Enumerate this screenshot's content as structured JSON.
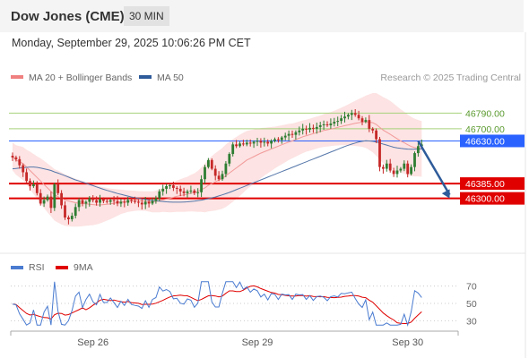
{
  "header": {
    "title": "Dow Jones (CME)",
    "interval": "30 MIN",
    "timestamp": "Monday, September 29, 2025 10:06:26 PM CET"
  },
  "legend": {
    "items": [
      {
        "label": "MA 20 + Bollinger Bands",
        "color": "#f08080"
      },
      {
        "label": "MA 50",
        "color": "#2e5b9a"
      }
    ],
    "credit": "Research © 2025 Trading Central"
  },
  "colors": {
    "up": "#2e7d32",
    "down": "#c62828",
    "band_fill": "#fde0e0",
    "ma20": "#f29a9a",
    "ma50": "#5577aa",
    "resistance": "#a6d27a",
    "support": "#e00000",
    "pivot": "#2962ff",
    "arrow": "#2e5b9a",
    "rsi": "#4a7bd0",
    "rsi_ma": "#e00000"
  },
  "chart_data": [
    {
      "type": "candlestick",
      "ylim": [
        46010,
        46905
      ],
      "x_ticks": [
        {
          "label": "Sep 26",
          "index": 23
        },
        {
          "label": "Sep 29",
          "index": 70
        },
        {
          "label": "Sep 30",
          "index": 113
        }
      ],
      "levels": [
        {
          "value": 46790,
          "label": "46790.00",
          "kind": "resistance"
        },
        {
          "value": 46700,
          "label": "46700.00",
          "kind": "resistance"
        },
        {
          "value": 46630,
          "label": "46630.00",
          "kind": "pivot"
        },
        {
          "value": 46385,
          "label": "46385.00",
          "kind": "support"
        },
        {
          "value": 46300,
          "label": "46300.00",
          "kind": "support"
        }
      ],
      "projection": {
        "from_index": 116,
        "from_value": 46630,
        "to_index": 125,
        "to_value": 46300
      },
      "closes": [
        46535,
        46525,
        46490,
        46450,
        46400,
        46370,
        46380,
        46330,
        46270,
        46290,
        46310,
        46245,
        46380,
        46330,
        46260,
        46190,
        46180,
        46200,
        46250,
        46290,
        46270,
        46280,
        46300,
        46290,
        46275,
        46295,
        46285,
        46280,
        46290,
        46285,
        46270,
        46280,
        46275,
        46290,
        46285,
        46280,
        46275,
        46265,
        46280,
        46270,
        46285,
        46300,
        46340,
        46355,
        46370,
        46375,
        46360,
        46355,
        46340,
        46330,
        46340,
        46345,
        46330,
        46335,
        46410,
        46480,
        46520,
        46470,
        46430,
        46410,
        46440,
        46500,
        46555,
        46610,
        46600,
        46615,
        46610,
        46620,
        46615,
        46625,
        46630,
        46620,
        46625,
        46615,
        46630,
        46640,
        46635,
        46650,
        46660,
        46670,
        46665,
        46680,
        46690,
        46700,
        46695,
        46705,
        46700,
        46710,
        46720,
        46725,
        46720,
        46730,
        46740,
        46745,
        46760,
        46770,
        46780,
        46790,
        46780,
        46760,
        46740,
        46750,
        46700,
        46690,
        46640,
        46480,
        46470,
        46500,
        46460,
        46440,
        46460,
        46470,
        46500,
        46440,
        46480,
        46560,
        46600,
        46610
      ],
      "ma20": [
        46540,
        46520,
        46510,
        46500,
        46480,
        46460,
        46440,
        46420,
        46400,
        46380,
        46360,
        46340,
        46320,
        46310,
        46300,
        46290,
        46285,
        46280,
        46275,
        46272,
        46270,
        46268,
        46266,
        46264,
        46262,
        46262,
        46264,
        46266,
        46268,
        46272,
        46276,
        46280,
        46282,
        46284,
        46285,
        46286,
        46286,
        46285,
        46284,
        46282,
        46280,
        46282,
        46286,
        46292,
        46296,
        46300,
        46306,
        46312,
        46316,
        46320,
        46324,
        46330,
        46334,
        46340,
        46350,
        46360,
        46375,
        46385,
        46395,
        46405,
        46415,
        46430,
        46445,
        46460,
        46475,
        46490,
        46505,
        46520,
        46530,
        46540,
        46550,
        46560,
        46568,
        46576,
        46584,
        46592,
        46600,
        46608,
        46616,
        46624,
        46630,
        46638,
        46646,
        46654,
        46660,
        46666,
        46672,
        46678,
        46684,
        46690,
        46694,
        46698,
        46703,
        46708,
        46713,
        46718,
        46722,
        46727,
        46731,
        46735,
        46738,
        46740,
        46738,
        46735,
        46725,
        46708,
        46692,
        46680,
        46668,
        46655,
        46642,
        46630,
        46620,
        46608,
        46598,
        46592,
        46588,
        46584
      ],
      "ma50": [
        46470,
        46472,
        46474,
        46476,
        46478,
        46480,
        46480,
        46478,
        46474,
        46470,
        46465,
        46460,
        46452,
        46445,
        46438,
        46430,
        46422,
        46414,
        46406,
        46400,
        46393,
        46387,
        46380,
        46373,
        46366,
        46359,
        46352,
        46346,
        46340,
        46334,
        46328,
        46323,
        46318,
        46313,
        46308,
        46304,
        46300,
        46297,
        46294,
        46291,
        46288,
        46286,
        46284,
        46282,
        46280,
        46279,
        46278,
        46278,
        46278,
        46279,
        46280,
        46282,
        46284,
        46287,
        46290,
        46294,
        46298,
        46303,
        46308,
        46314,
        46320,
        46327,
        46334,
        46342,
        46350,
        46358,
        46366,
        46374,
        46382,
        46390,
        46398,
        46406,
        46414,
        46422,
        46430,
        46438,
        46446,
        46454,
        46462,
        46470,
        46478,
        46486,
        46494,
        46502,
        46510,
        46518,
        46526,
        46534,
        46542,
        46550,
        46558,
        46566,
        46574,
        46582,
        46590,
        46598,
        46605,
        46612,
        46618,
        46624,
        46628,
        46631,
        46630,
        46628,
        46624,
        46618,
        46612,
        46606,
        46600,
        46594,
        46590,
        46587,
        46585,
        46583,
        46582,
        46582,
        46583,
        46584
      ],
      "bb_width": [
        80,
        85,
        90,
        95,
        100,
        108,
        115,
        122,
        130,
        136,
        140,
        144,
        148,
        150,
        150,
        148,
        146,
        142,
        138,
        134,
        130,
        126,
        122,
        118,
        112,
        106,
        100,
        94,
        88,
        82,
        76,
        70,
        66,
        62,
        60,
        58,
        56,
        56,
        56,
        58,
        60,
        62,
        66,
        70,
        75,
        80,
        85,
        90,
        94,
        98,
        100,
        105,
        110,
        118,
        128,
        140,
        150,
        158,
        165,
        170,
        175,
        180,
        180,
        180,
        178,
        176,
        172,
        168,
        162,
        156,
        150,
        144,
        138,
        132,
        126,
        120,
        116,
        112,
        108,
        104,
        100,
        98,
        96,
        94,
        92,
        92,
        92,
        92,
        92,
        94,
        96,
        98,
        100,
        104,
        108,
        112,
        118,
        124,
        130,
        136,
        142,
        150,
        160,
        170,
        180,
        186,
        190,
        192,
        192,
        190,
        186,
        182,
        178,
        174,
        170,
        166,
        162,
        160
      ]
    },
    {
      "type": "line",
      "name": "RSI",
      "ylim": [
        20,
        80
      ],
      "y_ticks": [
        70,
        50,
        30
      ],
      "legend": [
        {
          "label": "RSI",
          "color": "#4a7bd0"
        },
        {
          "label": "9MA",
          "color": "#e00000"
        }
      ]
    }
  ]
}
